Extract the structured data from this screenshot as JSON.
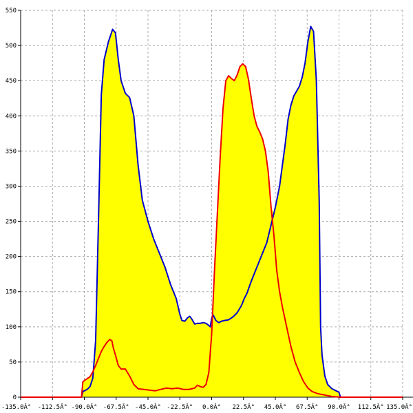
{
  "chart_data": {
    "type": "area",
    "title": "",
    "xlabel": "",
    "ylabel": "",
    "xlim": [
      -135,
      135
    ],
    "ylim": [
      0,
      550
    ],
    "grid": true,
    "x_ticks": [
      -135,
      -112.5,
      -90,
      -67.5,
      -45,
      -22.5,
      0,
      22.5,
      45,
      67.5,
      90,
      112.5,
      135
    ],
    "x_tick_labels": [
      "-135.0Â°",
      "-112.5Â°",
      "-90.0Â°",
      "-67.5Â°",
      "-45.0Â°",
      "-22.5Â°",
      "0.0Â°",
      "22.5Â°",
      "45.0Â°",
      "67.5Â°",
      "90.0Â°",
      "112.5Â°",
      "135.0Â°"
    ],
    "y_ticks": [
      0,
      50,
      100,
      150,
      200,
      250,
      300,
      350,
      400,
      450,
      500,
      550
    ],
    "y_tick_labels": [
      "0",
      "50",
      "100",
      "150",
      "200",
      "250",
      "300",
      "350",
      "400",
      "450",
      "500",
      "550"
    ],
    "fill_color": "#ffff00",
    "series": [
      {
        "color": "#0000cc",
        "points": [
          [
            -92,
            0
          ],
          [
            -91,
            8
          ],
          [
            -88,
            11
          ],
          [
            -86,
            15
          ],
          [
            -84,
            27
          ],
          [
            -82,
            80
          ],
          [
            -80,
            250
          ],
          [
            -78,
            430
          ],
          [
            -76,
            480
          ],
          [
            -73,
            505
          ],
          [
            -70,
            523
          ],
          [
            -68,
            518
          ],
          [
            -66,
            480
          ],
          [
            -64,
            450
          ],
          [
            -61,
            432
          ],
          [
            -58,
            426
          ],
          [
            -55,
            400
          ],
          [
            -52,
            330
          ],
          [
            -49,
            280
          ],
          [
            -45,
            250
          ],
          [
            -41,
            225
          ],
          [
            -37,
            205
          ],
          [
            -33,
            185
          ],
          [
            -29,
            160
          ],
          [
            -25,
            140
          ],
          [
            -22.5,
            118
          ],
          [
            -21,
            109
          ],
          [
            -19,
            108
          ],
          [
            -17,
            113
          ],
          [
            -15.5,
            115
          ],
          [
            -14,
            111
          ],
          [
            -12,
            104
          ],
          [
            -10,
            105
          ],
          [
            -8,
            105
          ],
          [
            -6,
            106
          ],
          [
            -4,
            105
          ],
          [
            -2,
            102
          ],
          [
            -1,
            100
          ],
          [
            0,
            112
          ],
          [
            1,
            117
          ],
          [
            3,
            109
          ],
          [
            5,
            106
          ],
          [
            7,
            108
          ],
          [
            9,
            109
          ],
          [
            12,
            110
          ],
          [
            15,
            114
          ],
          [
            18,
            120
          ],
          [
            21,
            130
          ],
          [
            23,
            140
          ],
          [
            25,
            148
          ],
          [
            28,
            165
          ],
          [
            31,
            180
          ],
          [
            35,
            200
          ],
          [
            39,
            220
          ],
          [
            42,
            245
          ],
          [
            45,
            270
          ],
          [
            48,
            300
          ],
          [
            50,
            330
          ],
          [
            52,
            360
          ],
          [
            54,
            395
          ],
          [
            56,
            415
          ],
          [
            58,
            428
          ],
          [
            60,
            435
          ],
          [
            62,
            442
          ],
          [
            64,
            455
          ],
          [
            66,
            475
          ],
          [
            68,
            505
          ],
          [
            70,
            527
          ],
          [
            72,
            520
          ],
          [
            74,
            450
          ],
          [
            76,
            280
          ],
          [
            77,
            100
          ],
          [
            78,
            60
          ],
          [
            80,
            30
          ],
          [
            82,
            18
          ],
          [
            85,
            12
          ],
          [
            88,
            9
          ],
          [
            90,
            7
          ],
          [
            91,
            0
          ]
        ]
      },
      {
        "color": "#ee0000",
        "points": [
          [
            -135,
            0
          ],
          [
            -92,
            0
          ],
          [
            -91,
            22
          ],
          [
            -89,
            25
          ],
          [
            -86,
            29
          ],
          [
            -84,
            36
          ],
          [
            -82,
            45
          ],
          [
            -80,
            55
          ],
          [
            -78,
            65
          ],
          [
            -76,
            72
          ],
          [
            -74,
            78
          ],
          [
            -72,
            82
          ],
          [
            -70.5,
            80
          ],
          [
            -69.5,
            70
          ],
          [
            -68,
            60
          ],
          [
            -66,
            45
          ],
          [
            -64,
            40
          ],
          [
            -61,
            40
          ],
          [
            -58,
            30
          ],
          [
            -55,
            18
          ],
          [
            -52,
            12
          ],
          [
            -48,
            11
          ],
          [
            -44,
            10
          ],
          [
            -40,
            9
          ],
          [
            -36,
            11
          ],
          [
            -32,
            13
          ],
          [
            -28,
            12
          ],
          [
            -24,
            13
          ],
          [
            -20,
            11
          ],
          [
            -16,
            11
          ],
          [
            -12,
            13
          ],
          [
            -10,
            17
          ],
          [
            -8,
            15
          ],
          [
            -6,
            14
          ],
          [
            -4,
            18
          ],
          [
            -2,
            35
          ],
          [
            0,
            90
          ],
          [
            2,
            180
          ],
          [
            4,
            260
          ],
          [
            6,
            340
          ],
          [
            8,
            410
          ],
          [
            10,
            450
          ],
          [
            12,
            457
          ],
          [
            14,
            453
          ],
          [
            16,
            450
          ],
          [
            18,
            458
          ],
          [
            20,
            470
          ],
          [
            22,
            474
          ],
          [
            24,
            470
          ],
          [
            26,
            452
          ],
          [
            28,
            425
          ],
          [
            30,
            400
          ],
          [
            32,
            385
          ],
          [
            34,
            377
          ],
          [
            36,
            367
          ],
          [
            38,
            350
          ],
          [
            40,
            320
          ],
          [
            42,
            270
          ],
          [
            44,
            230
          ],
          [
            46,
            180
          ],
          [
            48,
            150
          ],
          [
            50,
            128
          ],
          [
            53,
            100
          ],
          [
            56,
            72
          ],
          [
            59,
            50
          ],
          [
            62,
            35
          ],
          [
            65,
            22
          ],
          [
            68,
            13
          ],
          [
            71,
            8
          ],
          [
            75,
            5
          ],
          [
            80,
            3
          ],
          [
            85,
            1
          ],
          [
            91,
            0
          ],
          [
            135,
            0
          ]
        ]
      }
    ]
  }
}
